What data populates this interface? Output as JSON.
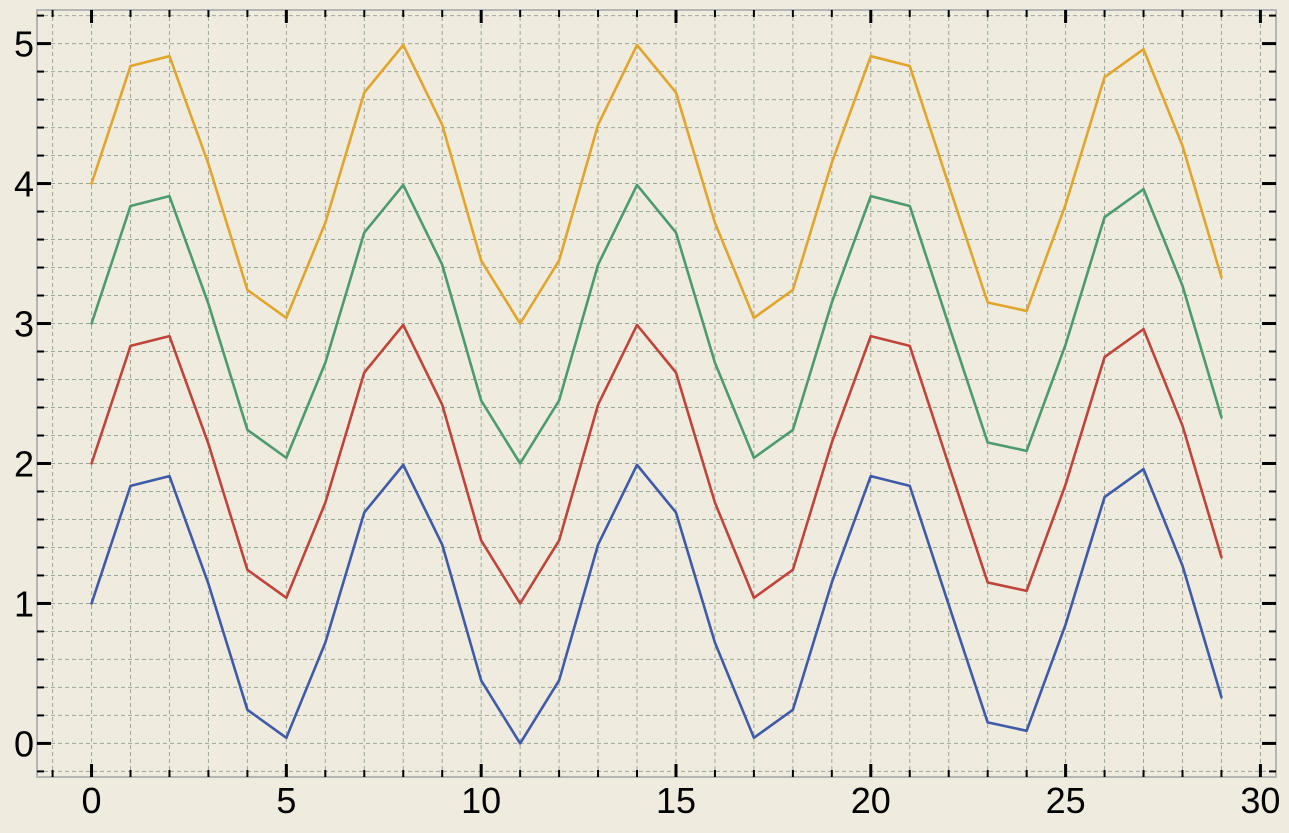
{
  "chart_data": {
    "type": "line",
    "title": "",
    "xlabel": "",
    "ylabel": "",
    "xlim": [
      -1.4,
      30.4
    ],
    "ylim": [
      -0.24,
      5.24
    ],
    "grid": true,
    "x_ticks": [
      0,
      5,
      10,
      15,
      20,
      25,
      30
    ],
    "y_ticks": [
      0,
      1,
      2,
      3,
      4,
      5
    ],
    "x_minor_step": 1,
    "y_minor_step": 0.2,
    "x": [
      0,
      1,
      2,
      3,
      4,
      5,
      6,
      7,
      8,
      9,
      10,
      11,
      12,
      13,
      14,
      15,
      16,
      17,
      18,
      19,
      20,
      21,
      22,
      23,
      24,
      25,
      26,
      27,
      28,
      29
    ],
    "series": [
      {
        "color": "#3f5aa8",
        "values": [
          1.0,
          1.84,
          1.91,
          1.14,
          0.24,
          0.04,
          0.72,
          1.65,
          1.99,
          1.42,
          0.45,
          0.0,
          0.45,
          1.42,
          1.99,
          1.65,
          0.72,
          0.04,
          0.24,
          1.15,
          1.91,
          1.84,
          0.99,
          0.15,
          0.09,
          0.85,
          1.76,
          1.96,
          1.27,
          0.33
        ]
      },
      {
        "color": "#c0443a",
        "values": [
          2.0,
          2.84,
          2.91,
          2.14,
          1.24,
          1.04,
          1.72,
          2.65,
          2.99,
          2.42,
          1.45,
          1.0,
          1.45,
          2.42,
          2.99,
          2.65,
          1.72,
          1.04,
          1.24,
          2.15,
          2.91,
          2.84,
          1.99,
          1.15,
          1.09,
          1.85,
          2.76,
          2.96,
          2.27,
          1.33
        ]
      },
      {
        "color": "#4c9b6e",
        "values": [
          3.0,
          3.84,
          3.91,
          3.14,
          2.24,
          2.04,
          2.72,
          3.65,
          3.99,
          3.42,
          2.45,
          2.0,
          2.45,
          3.42,
          3.99,
          3.65,
          2.72,
          2.04,
          2.24,
          3.15,
          3.91,
          3.84,
          2.99,
          2.15,
          2.09,
          2.85,
          3.76,
          3.96,
          3.27,
          2.33
        ]
      },
      {
        "color": "#e2a52c",
        "values": [
          4.0,
          4.84,
          4.91,
          4.14,
          3.24,
          3.04,
          3.72,
          4.65,
          4.99,
          4.42,
          3.45,
          3.0,
          3.45,
          4.42,
          4.99,
          4.65,
          3.72,
          3.04,
          3.24,
          4.15,
          4.91,
          4.84,
          3.99,
          3.15,
          3.09,
          3.85,
          4.76,
          4.96,
          4.27,
          3.33
        ]
      }
    ],
    "colors": {
      "background": "#f0ebdf",
      "grid": "#9aa89a",
      "frame": "#b5b5b5",
      "ticks": "#000000"
    }
  }
}
